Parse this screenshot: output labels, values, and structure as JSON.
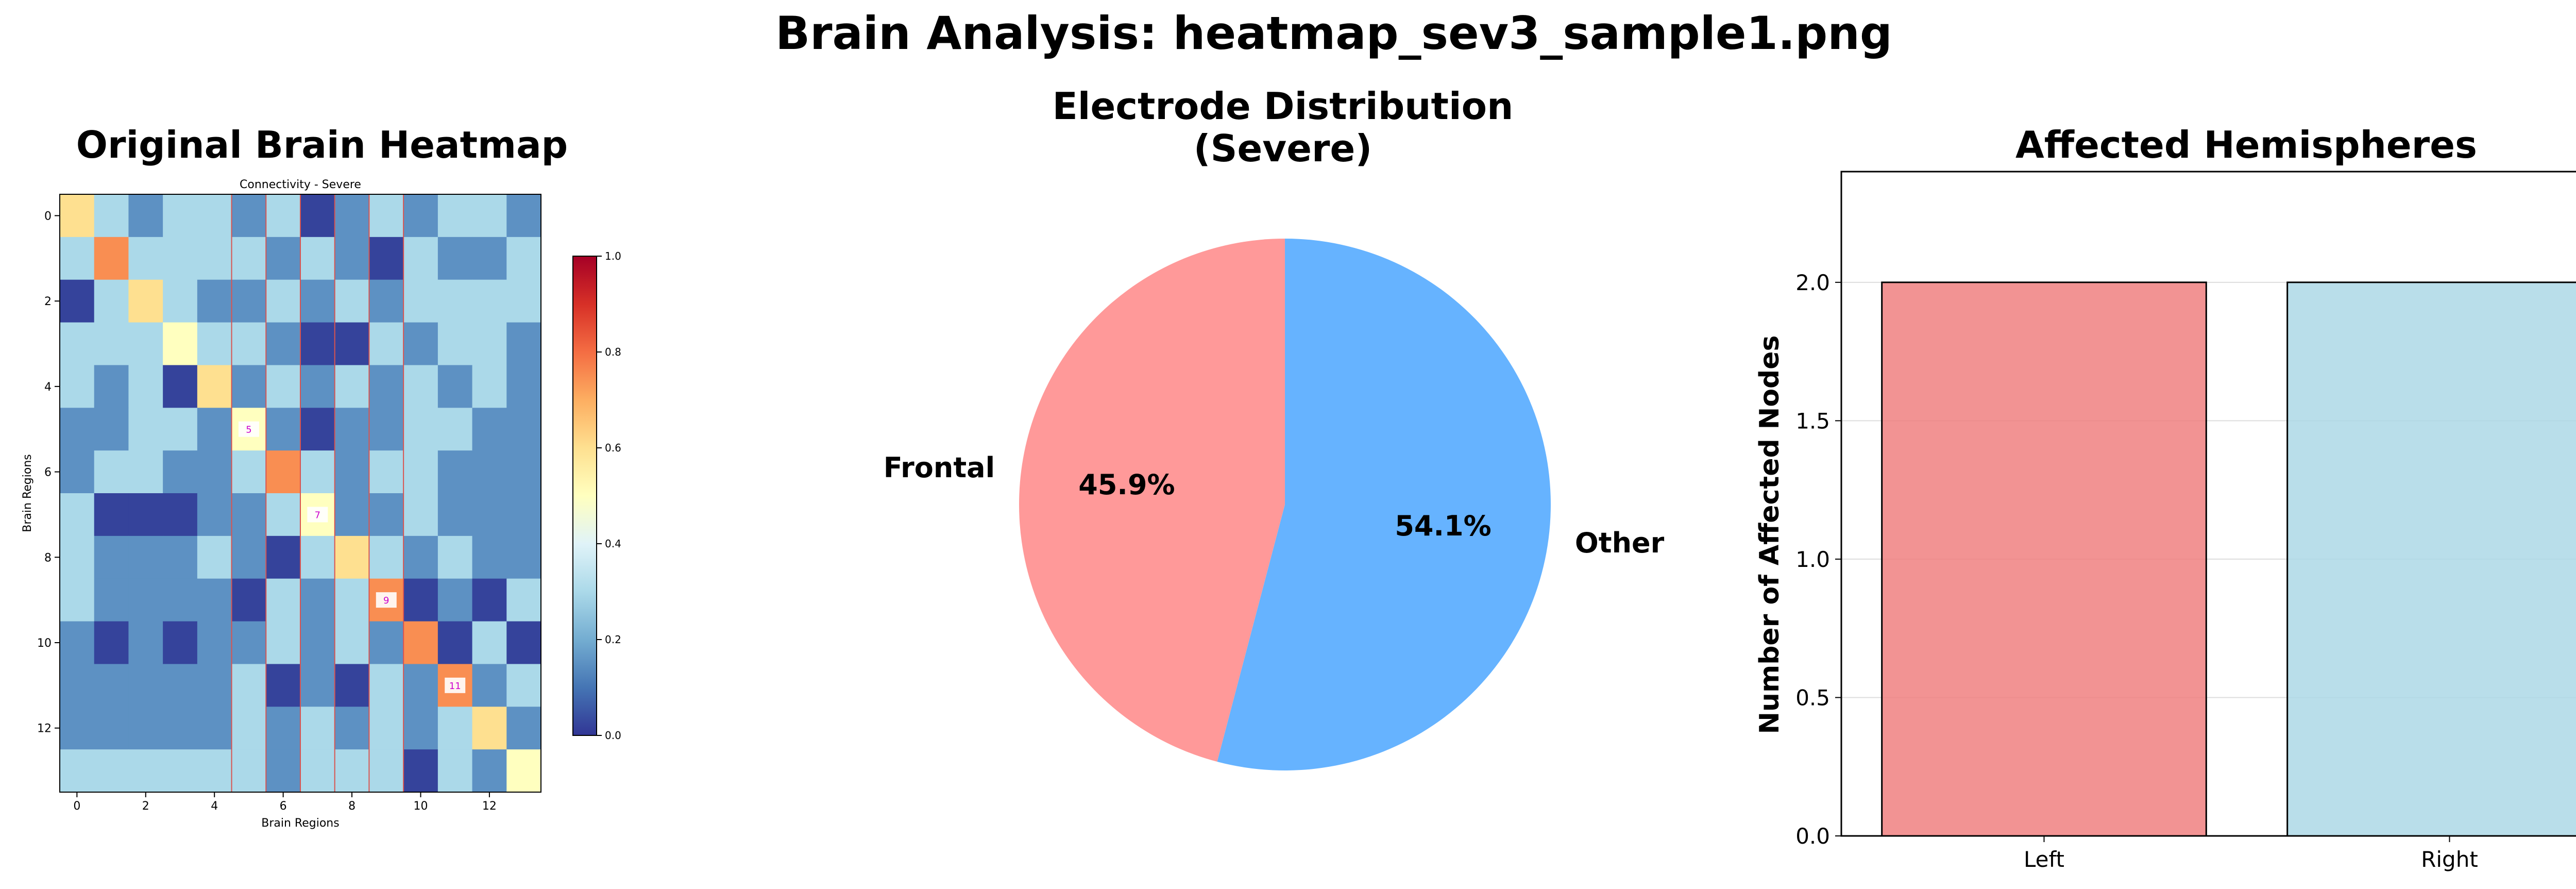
{
  "page": {
    "title": "Brain Analysis: heatmap_sev3_sample1.png"
  },
  "panels": {
    "heatmap": {
      "title": "Original Brain Heatmap"
    },
    "pie": {
      "title_line1": "Electrode Distribution",
      "title_line2": "(Severe)"
    },
    "bar": {
      "title": "Affected Hemispheres"
    }
  },
  "chart_data": [
    {
      "type": "heatmap",
      "title": "Connectivity - Severe",
      "xlabel": "Brain Regions",
      "ylabel": "Brain Regions",
      "x_ticks": [
        "0",
        "2",
        "4",
        "6",
        "8",
        "10",
        "12"
      ],
      "y_ticks": [
        "0",
        "2",
        "4",
        "6",
        "8",
        "10",
        "12"
      ],
      "colorbar_ticks": [
        "0.0",
        "0.2",
        "0.4",
        "0.6",
        "0.8",
        "1.0"
      ],
      "value_range": [
        0,
        1
      ],
      "colormap": "RdYlBu_r",
      "matrix": [
        [
          0.6,
          0.3,
          0.15,
          0.3,
          0.3,
          0.15,
          0.3,
          0.02,
          0.15,
          0.3,
          0.15,
          0.3,
          0.3,
          0.15
        ],
        [
          0.3,
          0.75,
          0.3,
          0.3,
          0.3,
          0.3,
          0.15,
          0.3,
          0.15,
          0.02,
          0.3,
          0.15,
          0.15,
          0.3
        ],
        [
          0.02,
          0.3,
          0.6,
          0.3,
          0.15,
          0.15,
          0.3,
          0.15,
          0.3,
          0.15,
          0.3,
          0.3,
          0.3,
          0.3
        ],
        [
          0.3,
          0.3,
          0.3,
          0.5,
          0.3,
          0.3,
          0.15,
          0.02,
          0.02,
          0.3,
          0.15,
          0.3,
          0.3,
          0.15
        ],
        [
          0.3,
          0.15,
          0.3,
          0.02,
          0.6,
          0.15,
          0.3,
          0.15,
          0.3,
          0.15,
          0.3,
          0.15,
          0.3,
          0.15
        ],
        [
          0.15,
          0.15,
          0.3,
          0.3,
          0.15,
          0.5,
          0.15,
          0.02,
          0.15,
          0.15,
          0.3,
          0.3,
          0.15,
          0.15
        ],
        [
          0.15,
          0.3,
          0.3,
          0.15,
          0.15,
          0.3,
          0.75,
          0.3,
          0.15,
          0.3,
          0.3,
          0.15,
          0.15,
          0.15
        ],
        [
          0.3,
          0.02,
          0.02,
          0.02,
          0.15,
          0.15,
          0.3,
          0.5,
          0.15,
          0.15,
          0.3,
          0.15,
          0.15,
          0.15
        ],
        [
          0.3,
          0.15,
          0.15,
          0.15,
          0.3,
          0.15,
          0.02,
          0.3,
          0.6,
          0.3,
          0.15,
          0.3,
          0.15,
          0.15
        ],
        [
          0.3,
          0.15,
          0.15,
          0.15,
          0.15,
          0.02,
          0.3,
          0.15,
          0.3,
          0.75,
          0.02,
          0.15,
          0.02,
          0.3
        ],
        [
          0.15,
          0.02,
          0.15,
          0.02,
          0.15,
          0.15,
          0.3,
          0.15,
          0.3,
          0.15,
          0.75,
          0.02,
          0.3,
          0.02
        ],
        [
          0.15,
          0.15,
          0.15,
          0.15,
          0.15,
          0.3,
          0.02,
          0.15,
          0.02,
          0.3,
          0.15,
          0.75,
          0.15,
          0.3
        ],
        [
          0.15,
          0.15,
          0.15,
          0.15,
          0.15,
          0.3,
          0.15,
          0.3,
          0.15,
          0.3,
          0.15,
          0.3,
          0.6,
          0.15
        ],
        [
          0.3,
          0.3,
          0.3,
          0.3,
          0.3,
          0.3,
          0.15,
          0.3,
          0.3,
          0.3,
          0.02,
          0.3,
          0.15,
          0.5
        ]
      ],
      "annotations": [
        {
          "row": 5,
          "col": 5,
          "text": "5"
        },
        {
          "row": 7,
          "col": 7,
          "text": "7"
        },
        {
          "row": 9,
          "col": 9,
          "text": "9"
        },
        {
          "row": 11,
          "col": 11,
          "text": "11"
        }
      ],
      "highlight_columns": [
        5,
        7,
        9
      ]
    },
    {
      "type": "pie",
      "labels": [
        "Frontal",
        "Other"
      ],
      "values": [
        45.9,
        54.1
      ],
      "value_labels": [
        "45.9%",
        "54.1%"
      ],
      "colors": [
        "#ff9999",
        "#66b3ff"
      ],
      "start_angle": 90
    },
    {
      "type": "bar",
      "categories": [
        "Left",
        "Right"
      ],
      "values": [
        2.0,
        2.0
      ],
      "colors": [
        "#f08080",
        "#add8e6"
      ],
      "ylabel": "Number of Affected Nodes",
      "ylim": [
        0,
        2.4
      ],
      "y_ticks": [
        "0.0",
        "0.5",
        "1.0",
        "1.5",
        "2.0"
      ],
      "grid": true
    }
  ]
}
